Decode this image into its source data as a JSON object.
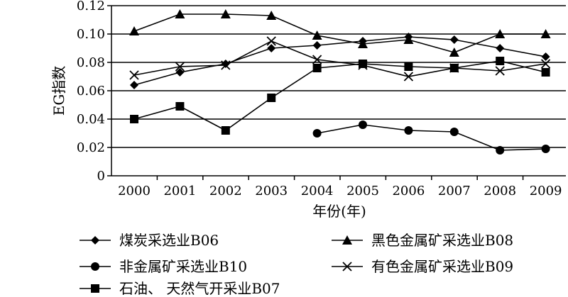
{
  "chart_data": {
    "type": "line",
    "title": "",
    "xlabel": "年份(年)",
    "ylabel": "EG指数",
    "x": [
      "2000",
      "2001",
      "2002",
      "2003",
      "2004",
      "2005",
      "2006",
      "2007",
      "2008",
      "2009"
    ],
    "ylim": [
      0,
      0.12
    ],
    "yticks": [
      "0",
      "0.02",
      "0.04",
      "0.06",
      "0.08",
      "0.10",
      "0.12"
    ],
    "grid": "horizontal",
    "legend_position": "bottom",
    "series": [
      {
        "name": "煤炭采选业B06",
        "marker": "diamond",
        "values": [
          0.064,
          0.073,
          0.079,
          0.09,
          0.092,
          0.095,
          0.098,
          0.096,
          0.09,
          0.084
        ]
      },
      {
        "name": "黑色金属矿采选业B08",
        "marker": "triangle",
        "values": [
          0.102,
          0.114,
          0.114,
          0.113,
          0.099,
          0.093,
          0.096,
          0.087,
          0.1,
          0.1
        ]
      },
      {
        "name": "非金属矿采选业B10",
        "marker": "circle",
        "values": [
          null,
          null,
          null,
          null,
          0.03,
          0.036,
          0.032,
          0.031,
          0.018,
          0.019
        ]
      },
      {
        "name": "有色金属矿采选业B09",
        "marker": "x",
        "values": [
          0.071,
          0.077,
          0.078,
          0.095,
          0.082,
          0.078,
          0.07,
          0.076,
          0.074,
          0.079
        ]
      },
      {
        "name": "石油、 天然气开采业B07",
        "marker": "square",
        "values": [
          0.04,
          0.049,
          0.032,
          0.055,
          0.076,
          0.079,
          0.077,
          0.076,
          0.081,
          0.073
        ]
      }
    ]
  }
}
